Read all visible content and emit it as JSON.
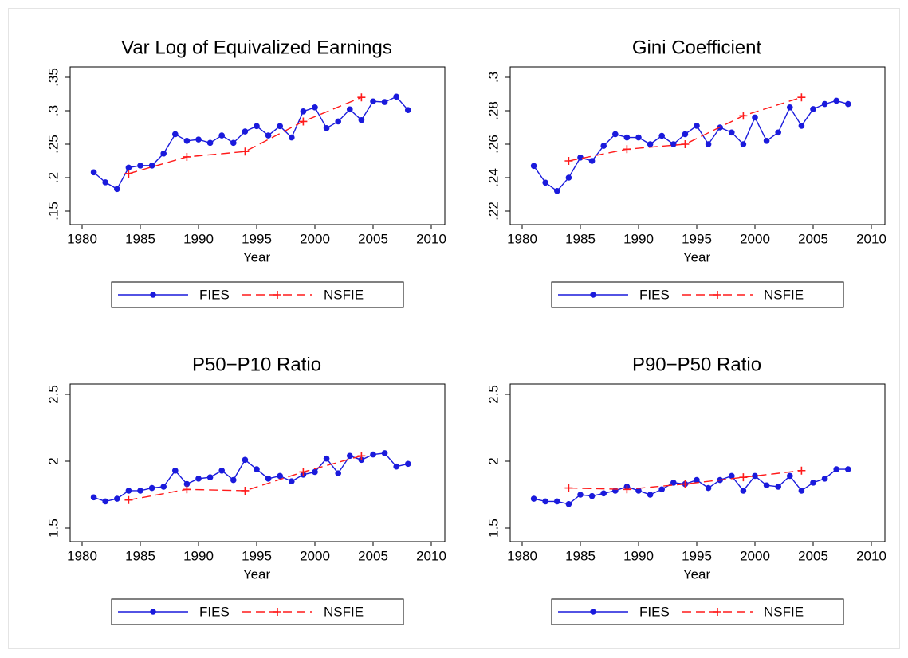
{
  "chart_data": [
    {
      "type": "line",
      "title": "Var Log of Equivalized Earnings",
      "xlabel": "Year",
      "xlim": [
        1980,
        2010
      ],
      "xticks": [
        1980,
        1985,
        1990,
        1995,
        2000,
        2005,
        2010
      ],
      "ylim": [
        0.15,
        0.35
      ],
      "yticks": [
        {
          "value": 0.15,
          "label": ".15"
        },
        {
          "value": 0.2,
          "label": ".2"
        },
        {
          "value": 0.25,
          "label": ".25"
        },
        {
          "value": 0.3,
          "label": ".3"
        },
        {
          "value": 0.35,
          "label": ".35"
        }
      ],
      "grid": false,
      "legend": "bottom",
      "series": [
        {
          "name": "FIES",
          "color": "#1a1adc",
          "marker": "circle",
          "dashed": false,
          "x": [
            1981,
            1982,
            1983,
            1984,
            1985,
            1986,
            1987,
            1988,
            1989,
            1990,
            1991,
            1992,
            1993,
            1994,
            1995,
            1996,
            1997,
            1998,
            1999,
            2000,
            2001,
            2002,
            2003,
            2004,
            2005,
            2006,
            2007,
            2008
          ],
          "values": [
            0.208,
            0.193,
            0.183,
            0.215,
            0.218,
            0.218,
            0.236,
            0.265,
            0.255,
            0.257,
            0.252,
            0.263,
            0.252,
            0.269,
            0.277,
            0.263,
            0.277,
            0.26,
            0.299,
            0.305,
            0.274,
            0.284,
            0.302,
            0.286,
            0.314,
            0.313,
            0.321,
            0.301
          ]
        },
        {
          "name": "NSFIE",
          "color": "#ff1a1a",
          "marker": "plus",
          "dashed": true,
          "x": [
            1984,
            1989,
            1994,
            1999,
            2004
          ],
          "values": [
            0.206,
            0.231,
            0.239,
            0.284,
            0.32
          ]
        }
      ]
    },
    {
      "type": "line",
      "title": "Gini Coefficient",
      "xlabel": "Year",
      "xlim": [
        1980,
        2010
      ],
      "xticks": [
        1980,
        1985,
        1990,
        1995,
        2000,
        2005,
        2010
      ],
      "ylim": [
        0.22,
        0.3
      ],
      "yticks": [
        {
          "value": 0.22,
          "label": ".22"
        },
        {
          "value": 0.24,
          "label": ".24"
        },
        {
          "value": 0.26,
          "label": ".26"
        },
        {
          "value": 0.28,
          "label": ".28"
        },
        {
          "value": 0.3,
          "label": ".3"
        }
      ],
      "grid": false,
      "legend": "bottom",
      "series": [
        {
          "name": "FIES",
          "color": "#1a1adc",
          "marker": "circle",
          "dashed": false,
          "x": [
            1981,
            1982,
            1983,
            1984,
            1985,
            1986,
            1987,
            1988,
            1989,
            1990,
            1991,
            1992,
            1993,
            1994,
            1995,
            1996,
            1997,
            1998,
            1999,
            2000,
            2001,
            2002,
            2003,
            2004,
            2005,
            2006,
            2007,
            2008
          ],
          "values": [
            0.247,
            0.237,
            0.232,
            0.24,
            0.252,
            0.25,
            0.259,
            0.266,
            0.264,
            0.264,
            0.26,
            0.265,
            0.26,
            0.266,
            0.271,
            0.26,
            0.27,
            0.267,
            0.26,
            0.276,
            0.262,
            0.267,
            0.282,
            0.271,
            0.281,
            0.284,
            0.286,
            0.284
          ]
        },
        {
          "name": "NSFIE",
          "color": "#ff1a1a",
          "marker": "plus",
          "dashed": true,
          "x": [
            1984,
            1989,
            1994,
            1999,
            2004
          ],
          "values": [
            0.25,
            0.257,
            0.26,
            0.277,
            0.288
          ]
        }
      ]
    },
    {
      "type": "line",
      "title": "P50−P10 Ratio",
      "xlabel": "Year",
      "xlim": [
        1980,
        2010
      ],
      "xticks": [
        1980,
        1985,
        1990,
        1995,
        2000,
        2005,
        2010
      ],
      "ylim": [
        1.5,
        2.5
      ],
      "yticks": [
        1.5,
        2,
        2.5
      ],
      "grid": false,
      "legend": "bottom",
      "series": [
        {
          "name": "FIES",
          "color": "#1a1adc",
          "marker": "circle",
          "dashed": false,
          "x": [
            1981,
            1982,
            1983,
            1984,
            1985,
            1986,
            1987,
            1988,
            1989,
            1990,
            1991,
            1992,
            1993,
            1994,
            1995,
            1996,
            1997,
            1998,
            1999,
            2000,
            2001,
            2002,
            2003,
            2004,
            2005,
            2006,
            2007,
            2008
          ],
          "values": [
            1.73,
            1.7,
            1.72,
            1.78,
            1.78,
            1.8,
            1.81,
            1.93,
            1.83,
            1.87,
            1.88,
            1.93,
            1.86,
            2.01,
            1.94,
            1.87,
            1.89,
            1.85,
            1.9,
            1.92,
            2.02,
            1.91,
            2.04,
            2.01,
            2.05,
            2.06,
            1.96,
            1.98
          ]
        },
        {
          "name": "NSFIE",
          "color": "#ff1a1a",
          "marker": "plus",
          "dashed": true,
          "x": [
            1984,
            1989,
            1994,
            1999,
            2004
          ],
          "values": [
            1.71,
            1.79,
            1.78,
            1.92,
            2.04
          ]
        }
      ]
    },
    {
      "type": "line",
      "title": "P90−P50 Ratio",
      "xlabel": "Year",
      "xlim": [
        1980,
        2010
      ],
      "xticks": [
        1980,
        1985,
        1990,
        1995,
        2000,
        2005,
        2010
      ],
      "ylim": [
        1.5,
        2.5
      ],
      "yticks": [
        1.5,
        2,
        2.5
      ],
      "grid": false,
      "legend": "bottom",
      "series": [
        {
          "name": "FIES",
          "color": "#1a1adc",
          "marker": "circle",
          "dashed": false,
          "x": [
            1981,
            1982,
            1983,
            1984,
            1985,
            1986,
            1987,
            1988,
            1989,
            1990,
            1991,
            1992,
            1993,
            1994,
            1995,
            1996,
            1997,
            1998,
            1999,
            2000,
            2001,
            2002,
            2003,
            2004,
            2005,
            2006,
            2007,
            2008
          ],
          "values": [
            1.72,
            1.7,
            1.7,
            1.68,
            1.75,
            1.74,
            1.76,
            1.78,
            1.81,
            1.78,
            1.75,
            1.79,
            1.84,
            1.83,
            1.86,
            1.8,
            1.86,
            1.89,
            1.78,
            1.89,
            1.82,
            1.81,
            1.89,
            1.78,
            1.84,
            1.87,
            1.94,
            1.94
          ]
        },
        {
          "name": "NSFIE",
          "color": "#ff1a1a",
          "marker": "plus",
          "dashed": true,
          "x": [
            1984,
            1989,
            1994,
            1999,
            2004
          ],
          "values": [
            1.8,
            1.79,
            1.83,
            1.88,
            1.93
          ]
        }
      ]
    }
  ]
}
